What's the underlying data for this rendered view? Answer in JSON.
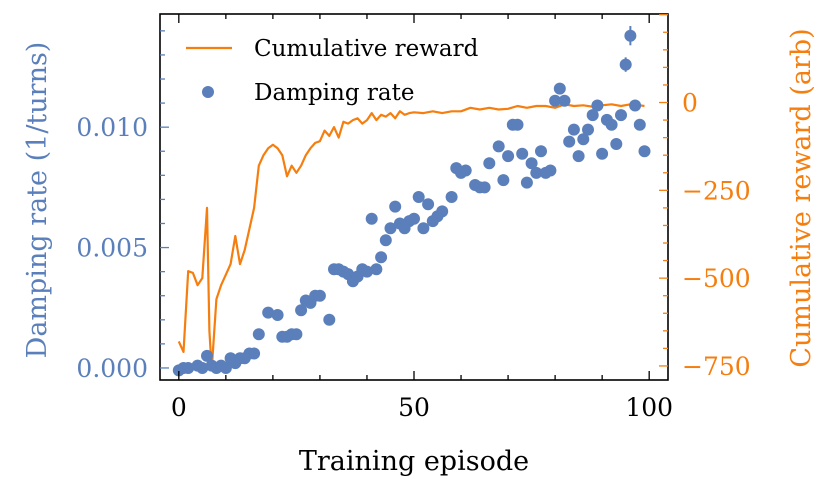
{
  "chart_data": {
    "type": "scatter",
    "xlabel": "Training episode",
    "ylabel_left": "Damping rate (1/turns)",
    "ylabel_right": "Cumulative reward (arb)",
    "xlim": [
      -4,
      104
    ],
    "ylim_left": [
      -0.0005,
      0.0147
    ],
    "ylim_right": [
      -790,
      252
    ],
    "x_ticks": [
      0,
      50,
      100
    ],
    "x_tick_labels": [
      "0",
      "50",
      "100"
    ],
    "y_left_ticks": [
      0.0,
      0.005,
      0.01
    ],
    "y_left_tick_labels": [
      "0.000",
      "0.005",
      "0.010"
    ],
    "y_right_ticks": [
      0,
      -250,
      -500,
      -750
    ],
    "y_right_tick_labels": [
      "0",
      "−250",
      "−500",
      "−750"
    ],
    "grid": false,
    "legend_position": "top-left",
    "colors": {
      "damping": "#5b7fba",
      "reward": "#f57e0f",
      "axes": "#000000"
    },
    "series": [
      {
        "name": "Damping rate",
        "kind": "scatter",
        "axis": "left",
        "x": [
          0,
          1,
          2,
          4,
          5,
          6,
          7,
          8,
          9,
          10,
          11,
          12,
          13,
          14,
          15,
          16,
          17,
          19,
          21,
          22,
          23,
          24,
          25,
          26,
          27,
          28,
          29,
          30,
          32,
          33,
          34,
          35,
          36,
          37,
          38,
          39,
          40,
          41,
          42,
          43,
          44,
          45,
          46,
          47,
          48,
          49,
          50,
          51,
          52,
          53,
          54,
          55,
          56,
          58,
          59,
          60,
          61,
          63,
          64,
          65,
          66,
          68,
          69,
          70,
          71,
          72,
          73,
          74,
          75,
          76,
          77,
          78,
          79,
          80,
          81,
          82,
          83,
          84,
          85,
          86,
          87,
          88,
          89,
          90,
          91,
          92,
          93,
          94,
          95,
          96,
          97,
          98,
          99
        ],
        "y": [
          -0.0001,
          0.0,
          0.0,
          0.0001,
          0.0,
          0.0005,
          0.0001,
          0.0,
          0.0001,
          0.0,
          0.0004,
          0.0002,
          0.0004,
          0.0004,
          0.0006,
          0.0006,
          0.0014,
          0.0023,
          0.0022,
          0.0013,
          0.0013,
          0.0014,
          0.0014,
          0.0024,
          0.0028,
          0.0027,
          0.003,
          0.003,
          0.002,
          0.0041,
          0.0041,
          0.004,
          0.0039,
          0.0036,
          0.0038,
          0.0041,
          0.004,
          0.0062,
          0.0041,
          0.0046,
          0.0053,
          0.0058,
          0.0067,
          0.006,
          0.0058,
          0.0061,
          0.0062,
          0.0071,
          0.0058,
          0.0068,
          0.0061,
          0.0063,
          0.0065,
          0.0071,
          0.0083,
          0.0081,
          0.0082,
          0.0076,
          0.0075,
          0.0075,
          0.0085,
          0.0092,
          0.0078,
          0.0088,
          0.0101,
          0.0101,
          0.0089,
          0.0077,
          0.0085,
          0.0081,
          0.009,
          0.0081,
          0.0082,
          0.0111,
          0.0116,
          0.0111,
          0.0094,
          0.0099,
          0.0088,
          0.0095,
          0.0099,
          0.0105,
          0.0109,
          0.0089,
          0.0103,
          0.0101,
          0.0093,
          0.0105,
          0.0126,
          0.0138,
          0.0109,
          0.0101,
          0.009
        ],
        "error": [
          0,
          0,
          0,
          0,
          0,
          0,
          0,
          0,
          0,
          0,
          0,
          0,
          0,
          0,
          0,
          0,
          0,
          0,
          0,
          0,
          0,
          0,
          0,
          0,
          0,
          0,
          0,
          0,
          0,
          0,
          0,
          0,
          0,
          0,
          0,
          0,
          0,
          0,
          0,
          0,
          0,
          0,
          0,
          0,
          0,
          0,
          0,
          0,
          0,
          0,
          0,
          0,
          0,
          0,
          0,
          0,
          0,
          0,
          0,
          0,
          0,
          0,
          0,
          0,
          0,
          0,
          0,
          0,
          0,
          0,
          0,
          0,
          0,
          0,
          0,
          0,
          0,
          0,
          0,
          0,
          0,
          0,
          0,
          0,
          0,
          0,
          0,
          0,
          0.0003,
          0.0004,
          0,
          0,
          0
        ]
      },
      {
        "name": "Cumulative reward",
        "kind": "line",
        "axis": "right",
        "x": [
          0,
          1,
          2,
          3,
          4,
          5,
          6,
          6.5,
          7,
          8,
          9,
          10,
          11,
          12,
          13,
          14,
          15,
          16,
          17,
          18,
          19,
          20,
          21,
          22,
          23,
          24,
          25,
          26,
          27,
          28,
          29,
          30,
          31,
          32,
          33,
          34,
          35,
          36,
          37,
          38,
          39,
          40,
          41,
          42,
          43,
          44,
          45,
          46,
          47,
          48,
          49,
          50,
          52,
          54,
          56,
          58,
          60,
          62,
          64,
          66,
          68,
          70,
          72,
          74,
          76,
          78,
          80,
          82,
          84,
          86,
          88,
          90,
          92,
          94,
          96,
          98,
          99
        ],
        "y": [
          -680,
          -710,
          -480,
          -485,
          -520,
          -500,
          -300,
          -650,
          -760,
          -560,
          -520,
          -490,
          -460,
          -380,
          -460,
          -420,
          -360,
          -300,
          -180,
          -150,
          -130,
          -120,
          -130,
          -150,
          -210,
          -180,
          -200,
          -180,
          -150,
          -130,
          -115,
          -110,
          -80,
          -95,
          -70,
          -100,
          -55,
          -60,
          -50,
          -45,
          -60,
          -50,
          -30,
          -50,
          -35,
          -40,
          -30,
          -45,
          -25,
          -35,
          -30,
          -28,
          -30,
          -25,
          -30,
          -25,
          -25,
          -15,
          -20,
          -15,
          -20,
          -18,
          -10,
          -15,
          -10,
          -10,
          -15,
          -5,
          -10,
          -8,
          -12,
          -8,
          -5,
          -10,
          -5,
          -8,
          -10
        ]
      }
    ]
  }
}
